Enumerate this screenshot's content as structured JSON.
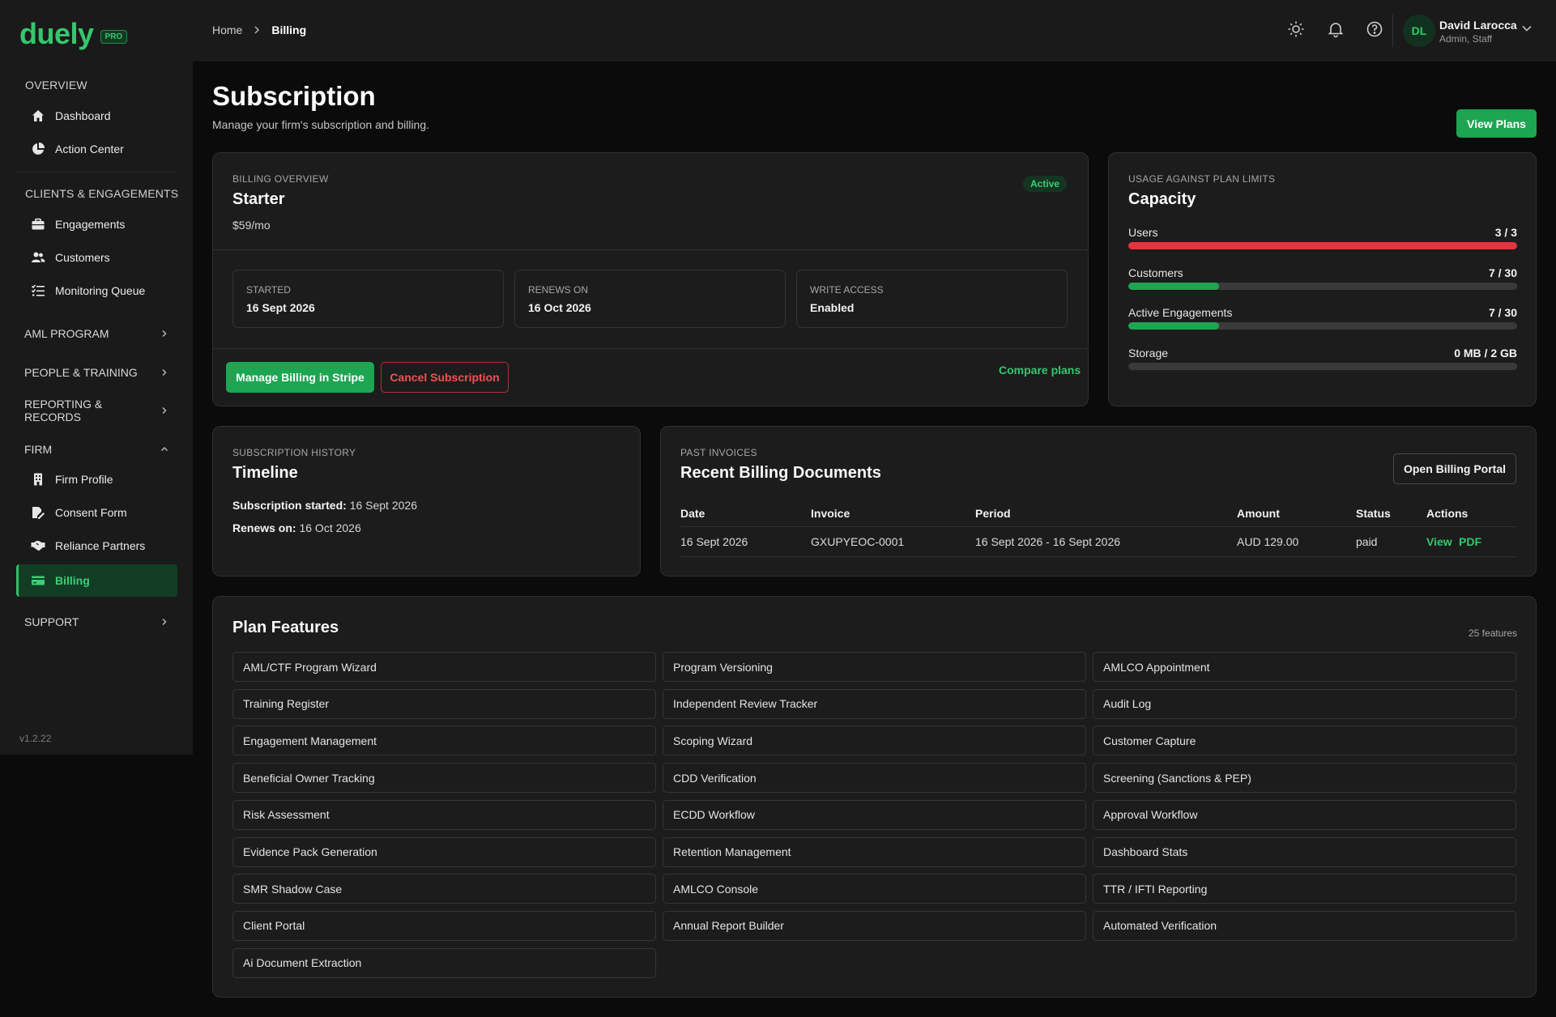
{
  "brand": {
    "name": "duely",
    "badge": "PRO",
    "version": "v1.2.22"
  },
  "sidebar": {
    "overview_label": "OVERVIEW",
    "overview_items": [
      {
        "label": "Dashboard",
        "icon": "home-icon"
      },
      {
        "label": "Action Center",
        "icon": "pie-chart-icon"
      }
    ],
    "clients_label": "CLIENTS & ENGAGEMENTS",
    "clients_items": [
      {
        "label": "Engagements",
        "icon": "briefcase-icon"
      },
      {
        "label": "Customers",
        "icon": "users-icon"
      },
      {
        "label": "Monitoring Queue",
        "icon": "list-check-icon"
      }
    ],
    "groups": {
      "aml": "AML PROGRAM",
      "people": "PEOPLE & TRAINING",
      "reporting": "REPORTING & RECORDS",
      "firm": "FIRM",
      "support": "SUPPORT"
    },
    "firm_items": [
      {
        "label": "Firm Profile",
        "icon": "building-icon"
      },
      {
        "label": "Consent Form",
        "icon": "signature-icon"
      },
      {
        "label": "Reliance Partners",
        "icon": "handshake-icon"
      },
      {
        "label": "Billing",
        "icon": "credit-card-icon",
        "active": true
      }
    ]
  },
  "topbar": {
    "breadcrumb": [
      "Home",
      "Billing"
    ],
    "user": {
      "initials": "DL",
      "name": "David Larocca",
      "role": "Admin, Staff"
    }
  },
  "page": {
    "title": "Subscription",
    "subtitle": "Manage your firm's subscription and billing.",
    "view_plans": "View Plans"
  },
  "billing": {
    "eyebrow": "BILLING OVERVIEW",
    "plan": "Starter",
    "price": "$59/mo",
    "status": "Active",
    "stats": [
      {
        "label": "STARTED",
        "value": "16 Sept 2026"
      },
      {
        "label": "RENEWS ON",
        "value": "16 Oct 2026"
      },
      {
        "label": "WRITE ACCESS",
        "value": "Enabled"
      }
    ],
    "manage_button": "Manage Billing in Stripe",
    "cancel_button": "Cancel Subscription",
    "compare_link": "Compare plans"
  },
  "capacity": {
    "eyebrow": "USAGE AGAINST PLAN LIMITS",
    "title": "Capacity",
    "rows": [
      {
        "label": "Users",
        "value": "3 / 3",
        "fraction": 1.0,
        "color": "#e5343f"
      },
      {
        "label": "Customers",
        "value": "7 / 30",
        "fraction": 0.2333,
        "color": "#1ea552"
      },
      {
        "label": "Active Engagements",
        "value": "7 / 30",
        "fraction": 0.2333,
        "color": "#1ea552"
      },
      {
        "label": "Storage",
        "value": "0 MB / 2 GB",
        "fraction": 0,
        "color": "#1ea552"
      }
    ]
  },
  "timeline": {
    "eyebrow": "SUBSCRIPTION HISTORY",
    "title": "Timeline",
    "started_label": "Subscription started:",
    "started_value": "16 Sept 2026",
    "renews_label": "Renews on:",
    "renews_value": "16 Oct 2026"
  },
  "invoices": {
    "eyebrow": "PAST INVOICES",
    "title": "Recent Billing Documents",
    "portal_button": "Open Billing Portal",
    "columns": [
      "Date",
      "Invoice",
      "Period",
      "Amount",
      "Status",
      "Actions"
    ],
    "rows": [
      {
        "date": "16 Sept 2026",
        "invoice": "GXUPYEOC-0001",
        "period": "16 Sept 2026 - 16 Sept 2026",
        "amount": "AUD 129.00",
        "status": "paid",
        "view": "View",
        "pdf": "PDF"
      }
    ]
  },
  "features": {
    "title": "Plan Features",
    "count": "25 features",
    "items": [
      "AML/CTF Program Wizard",
      "Program Versioning",
      "AMLCO Appointment",
      "Training Register",
      "Independent Review Tracker",
      "Audit Log",
      "Engagement Management",
      "Scoping Wizard",
      "Customer Capture",
      "Beneficial Owner Tracking",
      "CDD Verification",
      "Screening (Sanctions & PEP)",
      "Risk Assessment",
      "ECDD Workflow",
      "Approval Workflow",
      "Evidence Pack Generation",
      "Retention Management",
      "Dashboard Stats",
      "SMR Shadow Case",
      "AMLCO Console",
      "TTR / IFTI Reporting",
      "Client Portal",
      "Annual Report Builder",
      "Automated Verification",
      "Ai Document Extraction"
    ]
  }
}
